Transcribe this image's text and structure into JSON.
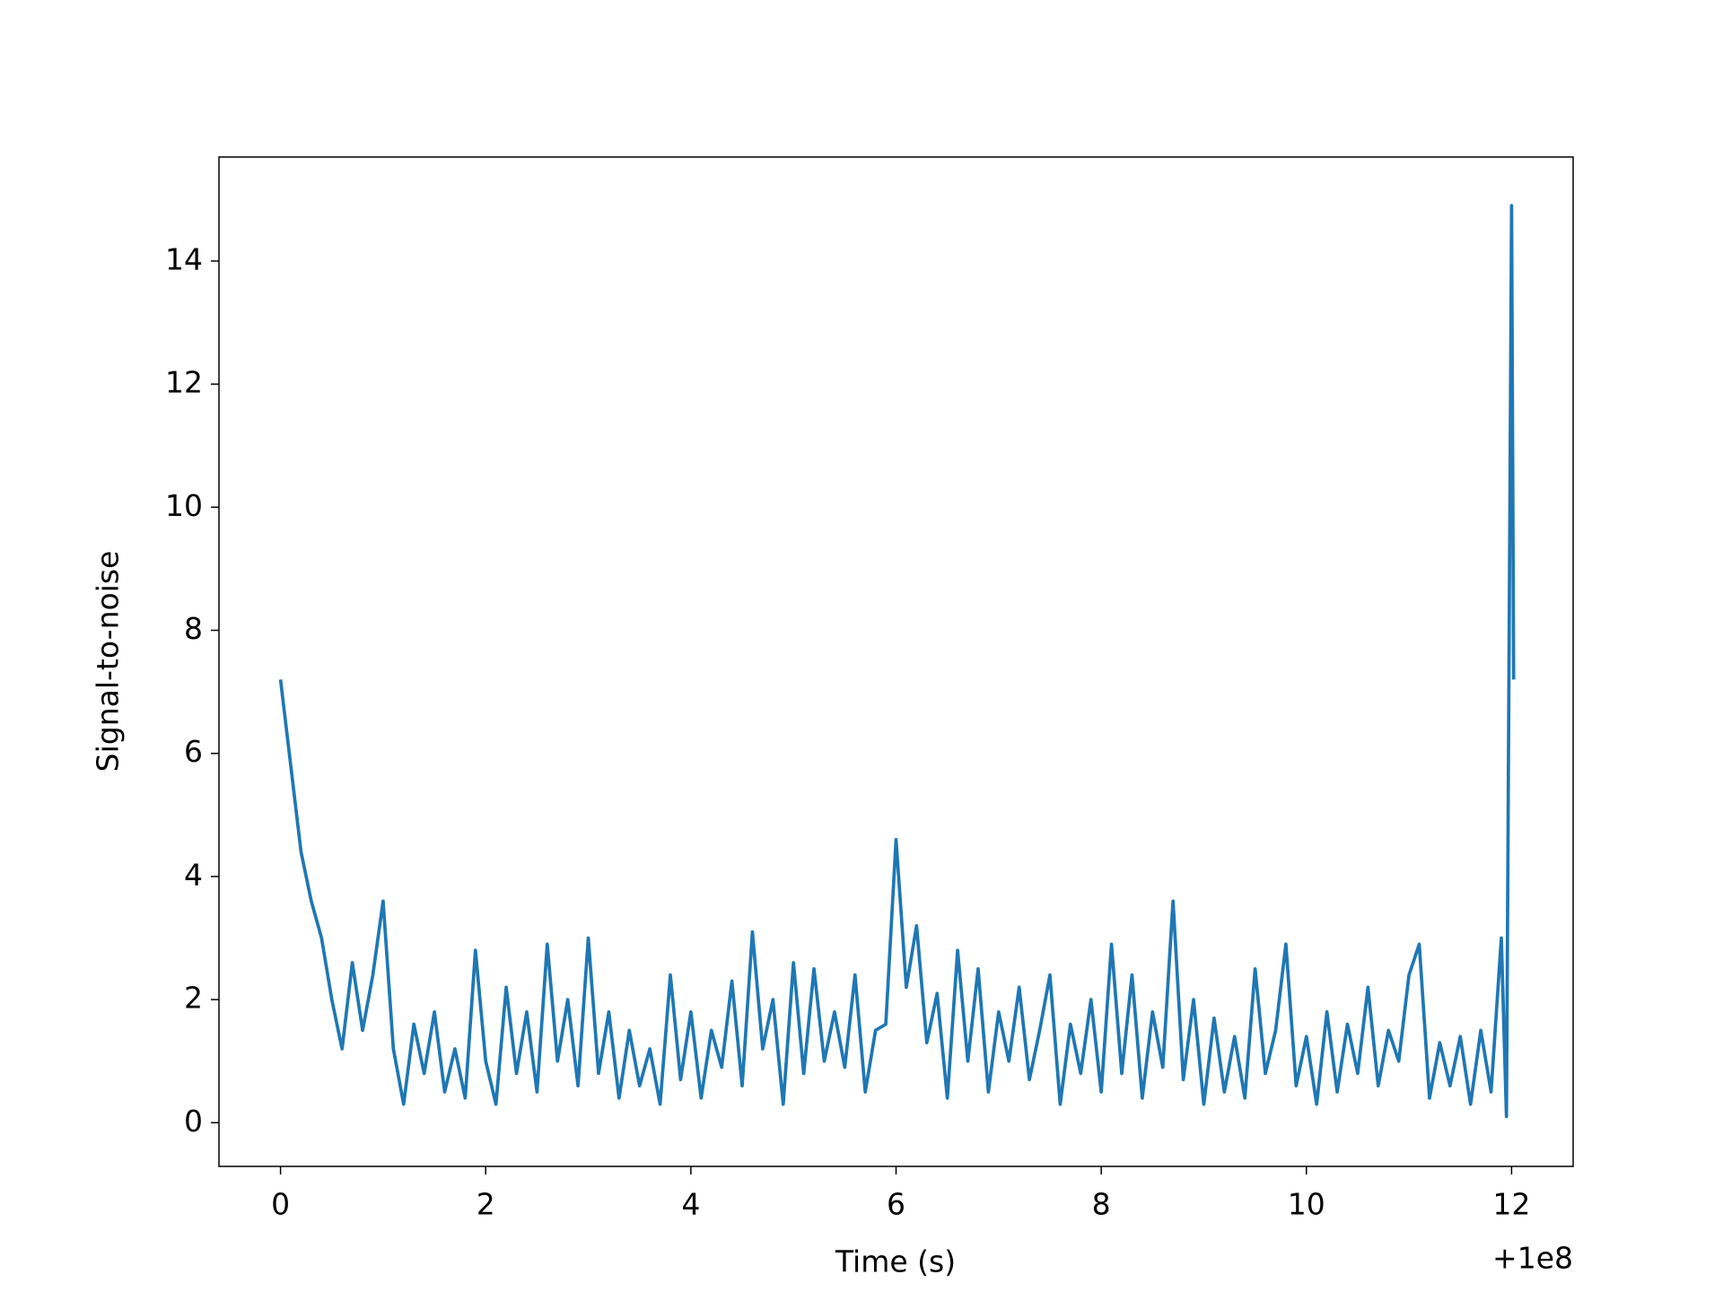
{
  "chart_data": {
    "type": "line",
    "xlabel": "Time (s)",
    "ylabel": "Signal-to-noise",
    "x_offset_label": "+1e8",
    "xlim": [
      -0.6,
      12.6
    ],
    "ylim": [
      -0.71,
      15.69
    ],
    "xticks": [
      0,
      2,
      4,
      6,
      8,
      10,
      12
    ],
    "yticks": [
      0,
      2,
      4,
      6,
      8,
      10,
      12,
      14
    ],
    "series": [
      {
        "color": "#1f77b4",
        "x": [
          0,
          0.1,
          0.2,
          0.3,
          0.4,
          0.5,
          0.6,
          0.7,
          0.8,
          0.9,
          1.0,
          1.1,
          1.2,
          1.3,
          1.4,
          1.5,
          1.6,
          1.7,
          1.8,
          1.9,
          2.0,
          2.1,
          2.2,
          2.3,
          2.4,
          2.5,
          2.6,
          2.7,
          2.8,
          2.9,
          3.0,
          3.1,
          3.2,
          3.3,
          3.4,
          3.5,
          3.6,
          3.7,
          3.8,
          3.9,
          4.0,
          4.1,
          4.2,
          4.3,
          4.4,
          4.5,
          4.6,
          4.7,
          4.8,
          4.9,
          5.0,
          5.1,
          5.2,
          5.3,
          5.4,
          5.5,
          5.6,
          5.7,
          5.8,
          5.9,
          6.0,
          6.1,
          6.2,
          6.3,
          6.4,
          6.5,
          6.6,
          6.7,
          6.8,
          6.9,
          7.0,
          7.1,
          7.2,
          7.3,
          7.4,
          7.5,
          7.6,
          7.7,
          7.8,
          7.9,
          8.0,
          8.1,
          8.2,
          8.3,
          8.4,
          8.5,
          8.6,
          8.7,
          8.8,
          8.9,
          9.0,
          9.1,
          9.2,
          9.3,
          9.4,
          9.5,
          9.6,
          9.7,
          9.8,
          9.9,
          10.0,
          10.1,
          10.2,
          10.3,
          10.4,
          10.5,
          10.6,
          10.7,
          10.8,
          10.9,
          11.0,
          11.1,
          11.2,
          11.3,
          11.4,
          11.5,
          11.6,
          11.7,
          11.8,
          11.9,
          11.95,
          12.0,
          12.02
        ],
        "values": [
          7.2,
          5.8,
          4.4,
          3.6,
          3.0,
          2.0,
          1.2,
          2.6,
          1.5,
          2.4,
          3.6,
          1.2,
          0.3,
          1.6,
          0.8,
          1.8,
          0.5,
          1.2,
          0.4,
          2.8,
          1.0,
          0.3,
          2.2,
          0.8,
          1.8,
          0.5,
          2.9,
          1.0,
          2.0,
          0.6,
          3.0,
          0.8,
          1.8,
          0.4,
          1.5,
          0.6,
          1.2,
          0.3,
          2.4,
          0.7,
          1.8,
          0.4,
          1.5,
          0.9,
          2.3,
          0.6,
          3.1,
          1.2,
          2.0,
          0.3,
          2.6,
          0.8,
          2.5,
          1.0,
          1.8,
          0.9,
          2.4,
          0.5,
          1.5,
          1.6,
          4.6,
          2.2,
          3.2,
          1.3,
          2.1,
          0.4,
          2.8,
          1.0,
          2.5,
          0.5,
          1.8,
          1.0,
          2.2,
          0.7,
          1.5,
          2.4,
          0.3,
          1.6,
          0.8,
          2.0,
          0.5,
          2.9,
          0.8,
          2.4,
          0.4,
          1.8,
          0.9,
          3.6,
          0.7,
          2.0,
          0.3,
          1.7,
          0.5,
          1.4,
          0.4,
          2.5,
          0.8,
          1.5,
          2.9,
          0.6,
          1.4,
          0.3,
          1.8,
          0.5,
          1.6,
          0.8,
          2.2,
          0.6,
          1.5,
          1.0,
          2.4,
          2.9,
          0.4,
          1.3,
          0.6,
          1.4,
          0.3,
          1.5,
          0.5,
          3.0,
          0.1,
          14.9,
          7.2
        ]
      }
    ]
  }
}
